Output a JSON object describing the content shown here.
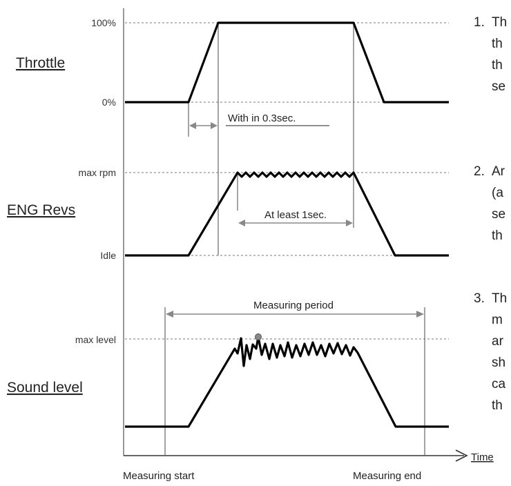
{
  "signals": {
    "throttle": {
      "label": "Throttle",
      "high_label": "100%",
      "low_label": "0%"
    },
    "eng_revs": {
      "label": "ENG Revs",
      "high_label": "max rpm",
      "low_label": "Idle"
    },
    "sound_level": {
      "label": "Sound level",
      "high_label": "max level"
    }
  },
  "annotations": {
    "throttle_time": "With in 0.3sec.",
    "hold_time": "At least 1sec.",
    "measuring_period": "Measuring period"
  },
  "axis": {
    "time_label": "Time",
    "measuring_start": "Measuring start",
    "measuring_end": "Measuring end"
  },
  "notes": [
    {
      "number": "1.",
      "lines": [
        "Th",
        "th",
        "th",
        "se"
      ]
    },
    {
      "number": "2.",
      "lines": [
        "Ar",
        "(a",
        "se",
        "th"
      ]
    },
    {
      "number": "3.",
      "lines": [
        "Th",
        "m",
        "ar",
        "sh",
        "ca",
        "th"
      ]
    }
  ],
  "colors": {
    "trace": "#000000",
    "guide": "#777777",
    "dimension_arrow": "#888888"
  }
}
